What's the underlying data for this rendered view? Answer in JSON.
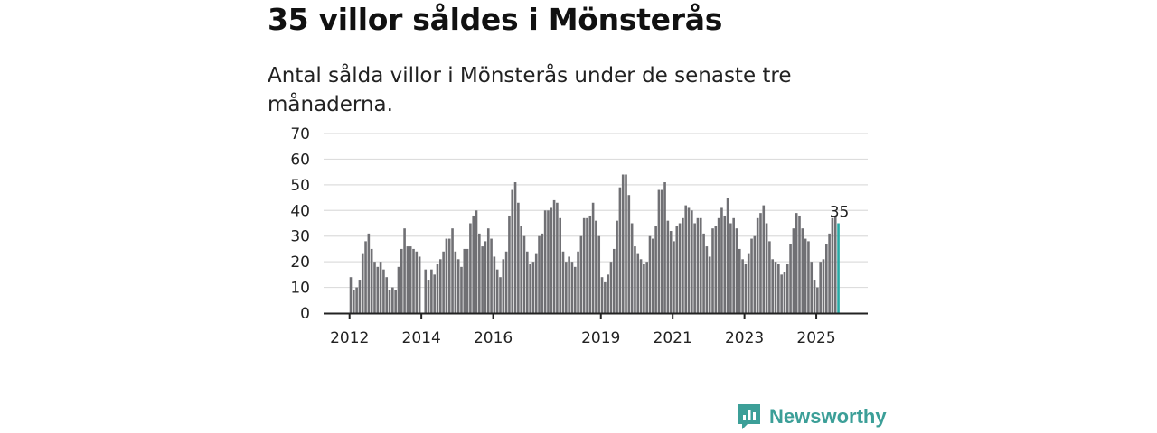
{
  "header": {
    "title": "35 villor såldes i Mönsterås",
    "subtitle": "Antal sålda villor i Mönsterås under de senaste tre månaderna."
  },
  "chart_data": {
    "type": "bar",
    "title": "35 villor såldes i Mönsterås",
    "subtitle": "Antal sålda villor i Mönsterås under de senaste tre månaderna.",
    "xlabel": "",
    "ylabel": "",
    "start": "2012-01",
    "frequency": "monthly",
    "ylim": [
      0,
      70
    ],
    "yticks": [
      0,
      10,
      20,
      30,
      40,
      50,
      60,
      70
    ],
    "xticks": [
      {
        "label": "2012",
        "index": 0
      },
      {
        "label": "2014",
        "index": 24
      },
      {
        "label": "2016",
        "index": 48
      },
      {
        "label": "2019",
        "index": 84
      },
      {
        "label": "2021",
        "index": 108
      },
      {
        "label": "2023",
        "index": 132
      },
      {
        "label": "2025",
        "index": 156
      }
    ],
    "values": [
      14,
      9,
      10,
      13,
      23,
      28,
      31,
      25,
      20,
      18,
      20,
      17,
      14,
      9,
      10,
      9,
      18,
      25,
      33,
      26,
      26,
      25,
      24,
      22,
      0,
      17,
      13,
      17,
      15,
      19,
      21,
      24,
      29,
      29,
      33,
      24,
      21,
      18,
      25,
      25,
      35,
      38,
      40,
      31,
      26,
      28,
      33,
      29,
      22,
      17,
      14,
      21,
      24,
      38,
      48,
      51,
      43,
      34,
      30,
      24,
      19,
      20,
      23,
      30,
      31,
      40,
      40,
      41,
      44,
      43,
      37,
      24,
      20,
      22,
      20,
      18,
      24,
      30,
      37,
      37,
      38,
      43,
      36,
      30,
      14,
      12,
      15,
      20,
      25,
      36,
      49,
      54,
      54,
      46,
      35,
      26,
      23,
      21,
      19,
      20,
      30,
      29,
      34,
      48,
      48,
      51,
      36,
      32,
      28,
      34,
      35,
      37,
      42,
      41,
      40,
      35,
      37,
      37,
      31,
      26,
      22,
      33,
      34,
      37,
      41,
      38,
      45,
      35,
      37,
      33,
      25,
      21,
      19,
      23,
      29,
      30,
      37,
      39,
      42,
      35,
      28,
      21,
      20,
      19,
      15,
      16,
      19,
      27,
      33,
      39,
      38,
      33,
      29,
      28,
      20,
      13,
      10,
      20,
      21,
      27,
      31,
      37,
      38,
      35
    ],
    "highlight_label": "35",
    "colors": {
      "bar": "#707074",
      "highlight": "#27aaa5",
      "grid": "#dddddd",
      "axis": "#222222"
    },
    "grid": true
  },
  "logo": {
    "text": "Newsworthy",
    "color": "#3c9f98"
  }
}
